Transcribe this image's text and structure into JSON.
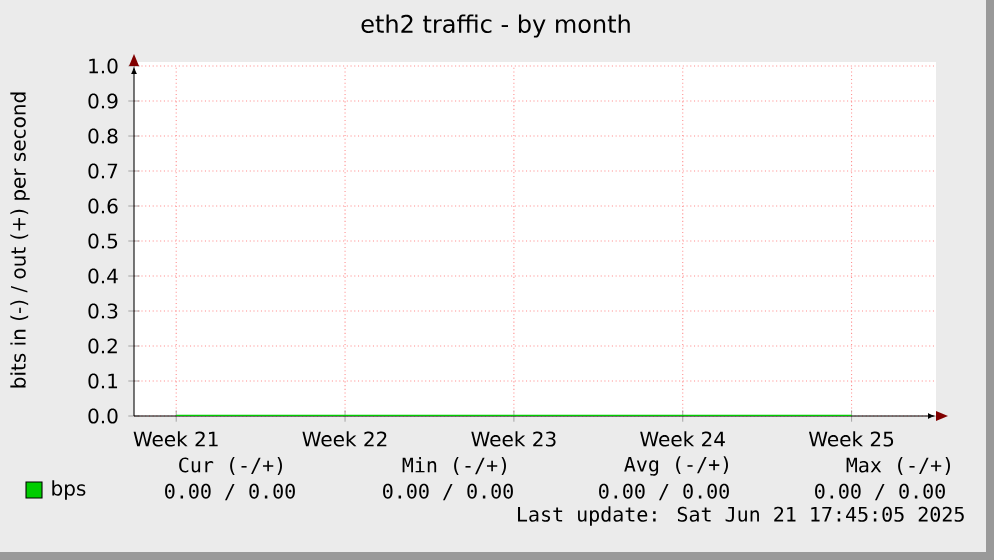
{
  "chart_data": {
    "type": "line",
    "title": "eth2 traffic - by month",
    "ylabel": "bits in (-) / out (+) per second",
    "categories": [
      "Week 21",
      "Week 22",
      "Week 23",
      "Week 24",
      "Week 25"
    ],
    "series": [
      {
        "name": "bps",
        "color": "#00cc00",
        "values": [
          0,
          0,
          0,
          0,
          0
        ]
      }
    ],
    "ylim": [
      0,
      1
    ],
    "yticks": [
      {
        "value": 0,
        "label": "0.0"
      },
      {
        "value": 0.1,
        "label": "0.1"
      },
      {
        "value": 0.2,
        "label": "0.2"
      },
      {
        "value": 0.3,
        "label": "0.3"
      },
      {
        "value": 0.4,
        "label": "0.4"
      },
      {
        "value": 0.5,
        "label": "0.5"
      },
      {
        "value": 0.6,
        "label": "0.6"
      },
      {
        "value": 0.7,
        "label": "0.7"
      },
      {
        "value": 0.8,
        "label": "0.8"
      },
      {
        "value": 0.9,
        "label": "0.9"
      },
      {
        "value": 1,
        "label": "1.0"
      }
    ],
    "grid": true,
    "legend": "bottom left",
    "marker": "none",
    "line_style": "solid",
    "annotations": [
      "Cur (-/+)",
      "Min (-/+)",
      "Avg (-/+)",
      "Max (-/+)",
      "0.00 / 0.00",
      "0.00 / 0.00",
      "0.00 / 0.00",
      "0.00 / 0.00",
      "Last update: Sat Jun 21 17:45:05 2025"
    ]
  }
}
